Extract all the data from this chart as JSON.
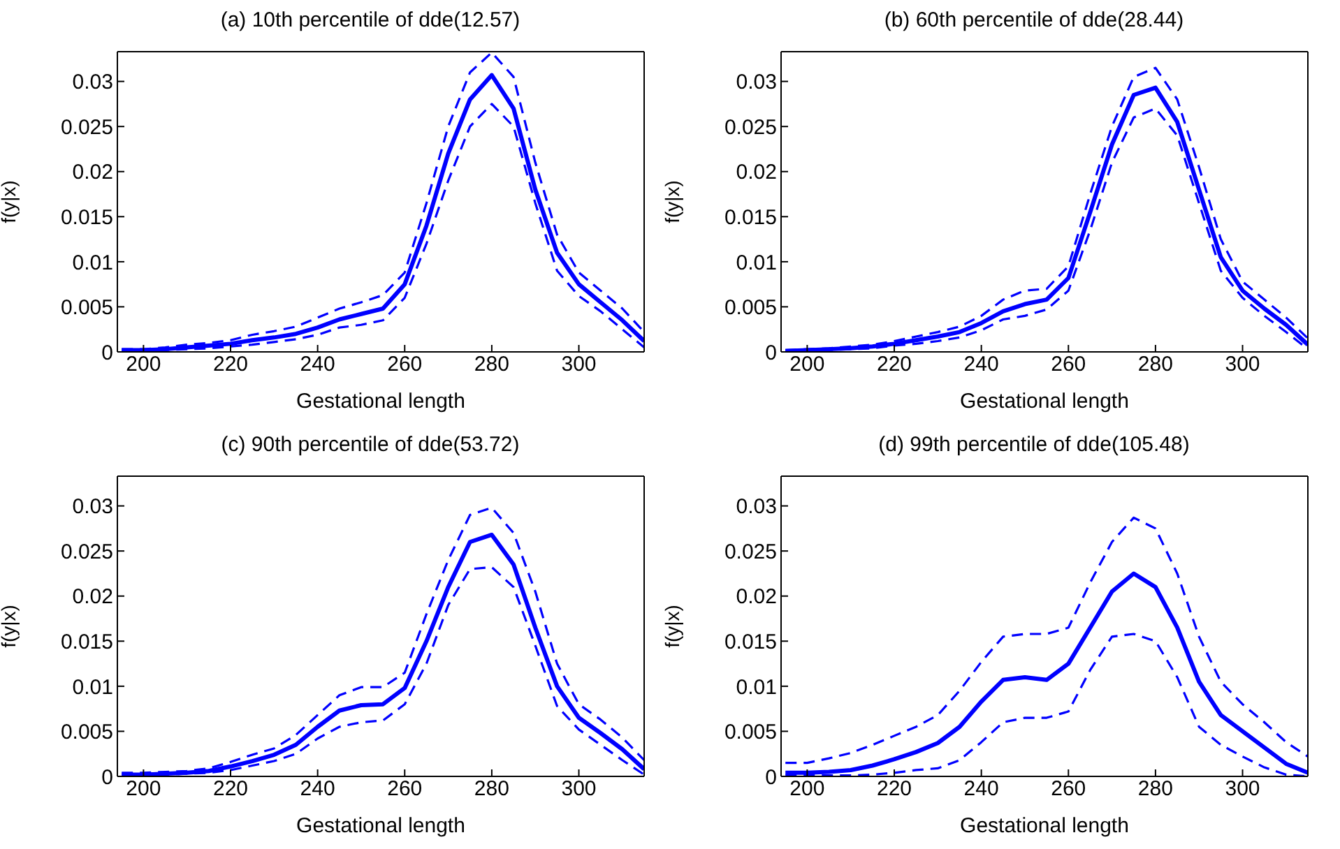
{
  "chart_data": [
    {
      "type": "line",
      "title": "(a) 10th percentile of dde(12.57)",
      "xlabel": "Gestational length",
      "ylabel": "f(y|x)",
      "xlim": [
        194,
        315
      ],
      "ylim": [
        0,
        0.0333
      ],
      "xticks": [
        200,
        220,
        240,
        260,
        280,
        300
      ],
      "yticks": [
        0,
        0.005,
        0.01,
        0.015,
        0.02,
        0.025,
        0.03
      ],
      "x": [
        195,
        200,
        205,
        210,
        215,
        220,
        225,
        230,
        235,
        240,
        245,
        250,
        255,
        260,
        265,
        270,
        275,
        280,
        285,
        290,
        295,
        300,
        305,
        310,
        315
      ],
      "series": [
        {
          "color": "#0000ff",
          "line_style": "solid",
          "values": [
            0.0002,
            0.0002,
            0.0003,
            0.0005,
            0.0007,
            0.0009,
            0.0013,
            0.0016,
            0.002,
            0.0027,
            0.0036,
            0.0042,
            0.0048,
            0.0075,
            0.014,
            0.022,
            0.028,
            0.0307,
            0.027,
            0.018,
            0.011,
            0.0075,
            0.0055,
            0.0035,
            0.0012
          ]
        },
        {
          "color": "#0000ff",
          "line_style": "dashed",
          "values": [
            0.0003,
            0.0003,
            0.0005,
            0.0008,
            0.001,
            0.0013,
            0.0019,
            0.0023,
            0.0028,
            0.0038,
            0.0048,
            0.0055,
            0.0063,
            0.0088,
            0.0165,
            0.025,
            0.031,
            0.0332,
            0.0305,
            0.021,
            0.013,
            0.0088,
            0.0068,
            0.0048,
            0.0022
          ]
        },
        {
          "color": "#0000ff",
          "line_style": "dashed",
          "values": [
            0.0001,
            0.0001,
            0.0002,
            0.0003,
            0.0004,
            0.0006,
            0.0008,
            0.0011,
            0.0014,
            0.0019,
            0.0027,
            0.003,
            0.0035,
            0.006,
            0.012,
            0.019,
            0.025,
            0.0275,
            0.025,
            0.0165,
            0.009,
            0.0062,
            0.0045,
            0.0025,
            0.0005
          ]
        }
      ]
    },
    {
      "type": "line",
      "title": "(b) 60th percentile of dde(28.44)",
      "xlabel": "Gestational length",
      "ylabel": "f(y|x)",
      "xlim": [
        194,
        315
      ],
      "ylim": [
        0,
        0.0333
      ],
      "xticks": [
        200,
        220,
        240,
        260,
        280,
        300
      ],
      "yticks": [
        0,
        0.005,
        0.01,
        0.015,
        0.02,
        0.025,
        0.03
      ],
      "x": [
        195,
        200,
        205,
        210,
        215,
        220,
        225,
        230,
        235,
        240,
        245,
        250,
        255,
        260,
        265,
        270,
        275,
        280,
        285,
        290,
        295,
        300,
        305,
        310,
        315
      ],
      "series": [
        {
          "color": "#0000ff",
          "line_style": "solid",
          "values": [
            0.0001,
            0.0002,
            0.0003,
            0.0004,
            0.0006,
            0.0009,
            0.0013,
            0.0017,
            0.0022,
            0.0032,
            0.0045,
            0.0053,
            0.0058,
            0.0082,
            0.0155,
            0.023,
            0.0285,
            0.0293,
            0.0255,
            0.018,
            0.0105,
            0.0068,
            0.0048,
            0.003,
            0.0008
          ]
        },
        {
          "color": "#0000ff",
          "line_style": "dashed",
          "values": [
            0.0002,
            0.0003,
            0.0004,
            0.0006,
            0.0008,
            0.0012,
            0.0017,
            0.0022,
            0.0028,
            0.004,
            0.0058,
            0.0068,
            0.007,
            0.0095,
            0.0175,
            0.025,
            0.0305,
            0.0315,
            0.028,
            0.0205,
            0.0125,
            0.0078,
            0.0058,
            0.0038,
            0.0015
          ]
        },
        {
          "color": "#0000ff",
          "line_style": "dashed",
          "values": [
            0.0001,
            0.0001,
            0.0002,
            0.0003,
            0.0004,
            0.0007,
            0.0009,
            0.0012,
            0.0016,
            0.0024,
            0.0036,
            0.004,
            0.0047,
            0.0068,
            0.0135,
            0.021,
            0.026,
            0.027,
            0.024,
            0.0165,
            0.009,
            0.006,
            0.004,
            0.0022,
            0.0003
          ]
        }
      ]
    },
    {
      "type": "line",
      "title": "(c) 90th percentile of dde(53.72)",
      "xlabel": "Gestational length",
      "ylabel": "f(y|x)",
      "xlim": [
        194,
        315
      ],
      "ylim": [
        0,
        0.0333
      ],
      "xticks": [
        200,
        220,
        240,
        260,
        280,
        300
      ],
      "yticks": [
        0,
        0.005,
        0.01,
        0.015,
        0.02,
        0.025,
        0.03
      ],
      "x": [
        195,
        200,
        205,
        210,
        215,
        220,
        225,
        230,
        235,
        240,
        245,
        250,
        255,
        260,
        265,
        270,
        275,
        280,
        285,
        290,
        295,
        300,
        305,
        310,
        315
      ],
      "series": [
        {
          "color": "#0000ff",
          "line_style": "solid",
          "values": [
            0.0002,
            0.0002,
            0.0003,
            0.0004,
            0.0006,
            0.0011,
            0.0017,
            0.0024,
            0.0035,
            0.0055,
            0.0073,
            0.0079,
            0.008,
            0.0098,
            0.015,
            0.021,
            0.026,
            0.0268,
            0.0235,
            0.0165,
            0.01,
            0.0065,
            0.0048,
            0.003,
            0.0008
          ]
        },
        {
          "color": "#0000ff",
          "line_style": "dashed",
          "values": [
            0.0004,
            0.0004,
            0.0005,
            0.0006,
            0.0009,
            0.0016,
            0.0024,
            0.0031,
            0.0046,
            0.0068,
            0.009,
            0.0099,
            0.0099,
            0.0115,
            0.018,
            0.024,
            0.029,
            0.0298,
            0.027,
            0.0205,
            0.0125,
            0.008,
            0.0063,
            0.0043,
            0.0018
          ]
        },
        {
          "color": "#0000ff",
          "line_style": "dashed",
          "values": [
            0.0001,
            0.0001,
            0.0002,
            0.0003,
            0.0004,
            0.0007,
            0.0012,
            0.0017,
            0.0025,
            0.0042,
            0.0055,
            0.006,
            0.0062,
            0.008,
            0.0125,
            0.019,
            0.023,
            0.0232,
            0.021,
            0.0145,
            0.0078,
            0.0052,
            0.0035,
            0.0018,
            0.0002
          ]
        }
      ]
    },
    {
      "type": "line",
      "title": "(d) 99th percentile of dde(105.48)",
      "xlabel": "Gestational length",
      "ylabel": "f(y|x)",
      "xlim": [
        194,
        315
      ],
      "ylim": [
        0,
        0.0333
      ],
      "xticks": [
        200,
        220,
        240,
        260,
        280,
        300
      ],
      "yticks": [
        0,
        0.005,
        0.01,
        0.015,
        0.02,
        0.025,
        0.03
      ],
      "x": [
        195,
        200,
        205,
        210,
        215,
        220,
        225,
        230,
        235,
        240,
        245,
        250,
        255,
        260,
        265,
        270,
        275,
        280,
        285,
        290,
        295,
        300,
        305,
        310,
        315
      ],
      "series": [
        {
          "color": "#0000ff",
          "line_style": "solid",
          "values": [
            0.0004,
            0.0004,
            0.0005,
            0.0007,
            0.0012,
            0.0019,
            0.0027,
            0.0037,
            0.0055,
            0.0083,
            0.0107,
            0.011,
            0.0107,
            0.0125,
            0.0165,
            0.0205,
            0.0225,
            0.021,
            0.0165,
            0.0105,
            0.0068,
            0.005,
            0.0032,
            0.0014,
            0.0004
          ]
        },
        {
          "color": "#0000ff",
          "line_style": "dashed",
          "values": [
            0.0015,
            0.0015,
            0.002,
            0.0026,
            0.0035,
            0.0045,
            0.0055,
            0.0068,
            0.0095,
            0.0127,
            0.0155,
            0.0158,
            0.0158,
            0.0165,
            0.0215,
            0.026,
            0.0287,
            0.0275,
            0.0225,
            0.0155,
            0.0105,
            0.008,
            0.006,
            0.0038,
            0.0022
          ]
        },
        {
          "color": "#0000ff",
          "line_style": "dashed",
          "values": [
            0.0001,
            0.0001,
            0.0001,
            0.0001,
            0.0002,
            0.0004,
            0.0007,
            0.0009,
            0.0018,
            0.0038,
            0.006,
            0.0065,
            0.0065,
            0.0072,
            0.0118,
            0.0155,
            0.0158,
            0.015,
            0.011,
            0.0055,
            0.0035,
            0.0022,
            0.001,
            0.0002,
            0
          ]
        }
      ]
    }
  ]
}
